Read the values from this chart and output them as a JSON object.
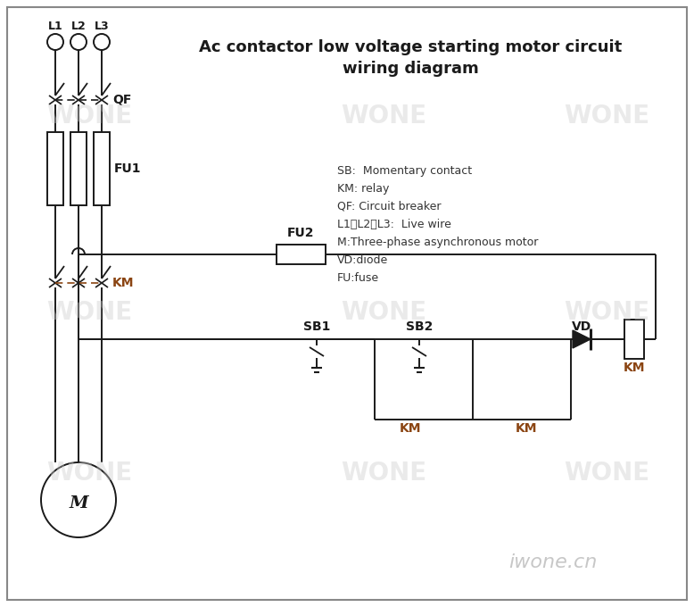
{
  "title": "Ac contactor low voltage starting motor circuit\nwiring diagram",
  "title_fontsize": 13,
  "legend_text": "SB:  Momentary contact\nKM: relay\nQF: Circuit breaker\nL1、L2、L3:  Live wire\nM:Three-phase asynchronous motor\nVD:diode\nFU:fuse",
  "legend_fontsize": 9,
  "watermark": "WONE",
  "watermark2": "iwone.cn",
  "bg_color": "#ffffff",
  "line_color": "#1a1a1a",
  "km_color": "#8B4513",
  "wone_color": "#cccccc",
  "figw": 7.78,
  "figh": 6.8,
  "dpi": 100
}
